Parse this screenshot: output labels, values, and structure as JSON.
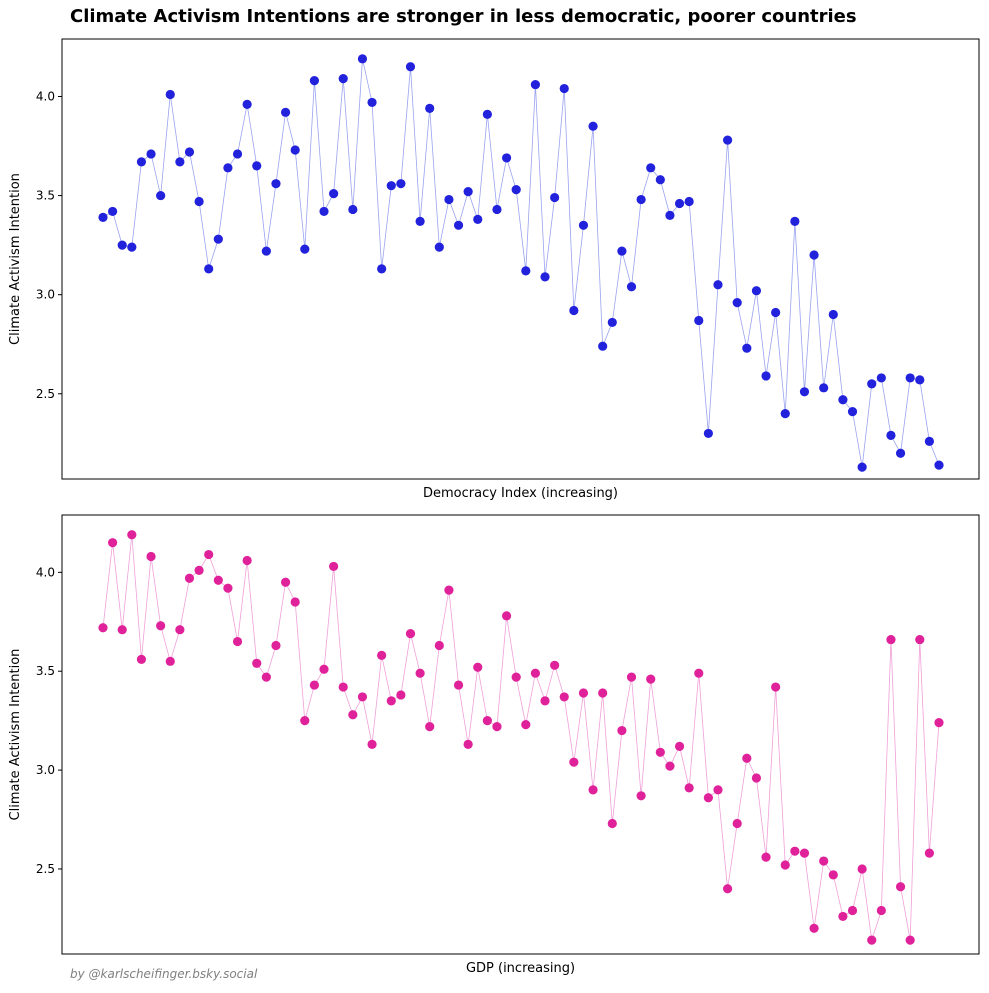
{
  "title": "Climate Activism Intentions are stronger in less democratic, poorer countries",
  "credit": "by @karlscheifinger.bsky.social",
  "chart_data": [
    {
      "type": "line",
      "marker": "circle",
      "color": "#2222dd",
      "line_color": "#9aa3f0",
      "xlabel": "Democracy Index (increasing)",
      "ylabel": "Climate Activism Intention",
      "xticks_shown": false,
      "yticks": [
        "2.5",
        "3.0",
        "3.5",
        "4.0"
      ],
      "ylim": [
        2.07,
        4.29
      ],
      "grid": false,
      "x": [
        1,
        2,
        3,
        4,
        5,
        6,
        7,
        8,
        9,
        10,
        11,
        12,
        13,
        14,
        15,
        16,
        17,
        18,
        19,
        20,
        21,
        22,
        23,
        24,
        25,
        26,
        27,
        28,
        29,
        30,
        31,
        32,
        33,
        34,
        35,
        36,
        37,
        38,
        39,
        40,
        41,
        42,
        43,
        44,
        45,
        46,
        47,
        48,
        49,
        50,
        51,
        52,
        53,
        54,
        55,
        56,
        57,
        58,
        59,
        60,
        61,
        62,
        63,
        64,
        65,
        66,
        67,
        68,
        69,
        70,
        71,
        72,
        73,
        74,
        75,
        76,
        77,
        78,
        79,
        80,
        81,
        82,
        83,
        84,
        85,
        86,
        87,
        88
      ],
      "y": [
        3.39,
        3.42,
        3.25,
        3.24,
        3.67,
        3.71,
        3.5,
        4.01,
        3.67,
        3.72,
        3.47,
        3.13,
        3.28,
        3.64,
        3.71,
        3.96,
        3.65,
        3.22,
        3.56,
        3.92,
        3.73,
        3.23,
        4.08,
        3.42,
        3.51,
        4.09,
        3.43,
        4.19,
        3.97,
        3.13,
        3.55,
        3.56,
        4.15,
        3.37,
        3.94,
        3.24,
        3.48,
        3.35,
        3.52,
        3.38,
        3.91,
        3.43,
        3.69,
        3.53,
        3.12,
        4.06,
        3.09,
        3.49,
        4.04,
        2.92,
        3.35,
        3.85,
        2.74,
        2.86,
        3.22,
        3.04,
        3.48,
        3.64,
        3.58,
        3.4,
        3.46,
        3.47,
        2.87,
        2.3,
        3.05,
        3.78,
        2.96,
        2.73,
        3.02,
        2.59,
        2.91,
        2.4,
        3.37,
        2.51,
        3.2,
        2.53,
        2.9,
        2.47,
        2.41,
        2.13,
        2.55,
        2.58,
        2.29,
        2.2,
        2.58,
        2.57,
        2.26,
        2.14
      ]
    },
    {
      "type": "line",
      "marker": "circle",
      "color": "#e0229a",
      "line_color": "#f0a0d8",
      "xlabel": "GDP (increasing)",
      "ylabel": "Climate Activism Intention",
      "xticks_shown": false,
      "yticks": [
        "2.5",
        "3.0",
        "3.5",
        "4.0"
      ],
      "ylim": [
        2.07,
        4.29
      ],
      "grid": false,
      "x": [
        1,
        2,
        3,
        4,
        5,
        6,
        7,
        8,
        9,
        10,
        11,
        12,
        13,
        14,
        15,
        16,
        17,
        18,
        19,
        20,
        21,
        22,
        23,
        24,
        25,
        26,
        27,
        28,
        29,
        30,
        31,
        32,
        33,
        34,
        35,
        36,
        37,
        38,
        39,
        40,
        41,
        42,
        43,
        44,
        45,
        46,
        47,
        48,
        49,
        50,
        51,
        52,
        53,
        54,
        55,
        56,
        57,
        58,
        59,
        60,
        61,
        62,
        63,
        64,
        65,
        66,
        67,
        68,
        69,
        70,
        71,
        72,
        73,
        74,
        75,
        76,
        77,
        78,
        79,
        80,
        81,
        82,
        83,
        84,
        85,
        86,
        87,
        88
      ],
      "y": [
        3.72,
        4.15,
        3.71,
        4.19,
        3.56,
        4.08,
        3.73,
        3.55,
        3.71,
        3.97,
        4.01,
        4.09,
        3.96,
        3.92,
        3.65,
        4.06,
        3.54,
        3.47,
        3.63,
        3.95,
        3.85,
        3.25,
        3.43,
        3.51,
        4.03,
        3.42,
        3.28,
        3.37,
        3.13,
        3.58,
        3.35,
        3.38,
        3.69,
        3.49,
        3.22,
        3.63,
        3.91,
        3.43,
        3.13,
        3.52,
        3.25,
        3.22,
        3.78,
        3.47,
        3.23,
        3.49,
        3.35,
        3.53,
        3.37,
        3.04,
        3.39,
        2.9,
        3.39,
        2.73,
        3.2,
        3.47,
        2.87,
        3.46,
        3.09,
        3.02,
        3.12,
        2.91,
        3.49,
        2.86,
        2.9,
        2.4,
        2.73,
        3.06,
        2.96,
        2.56,
        3.42,
        2.52,
        2.59,
        2.58,
        2.2,
        2.54,
        2.47,
        2.26,
        2.29,
        2.5,
        2.14,
        2.29,
        3.66,
        2.41,
        2.14,
        3.66,
        2.58,
        3.24
      ]
    }
  ]
}
